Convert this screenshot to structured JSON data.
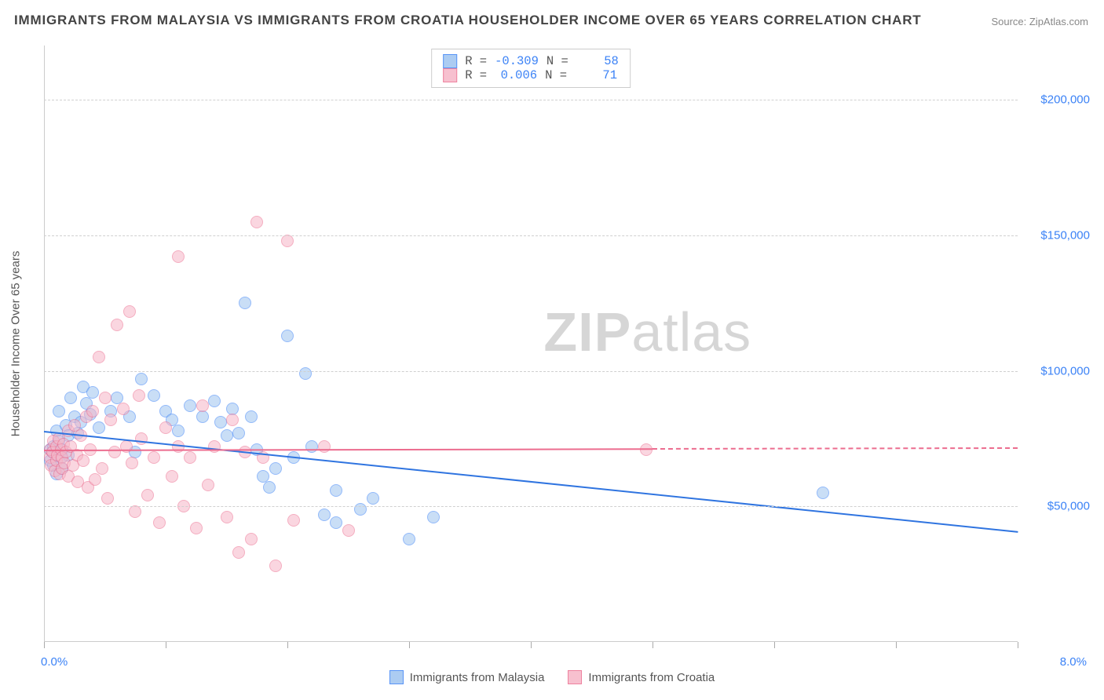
{
  "title": "IMMIGRANTS FROM MALAYSIA VS IMMIGRANTS FROM CROATIA HOUSEHOLDER INCOME OVER 65 YEARS CORRELATION CHART",
  "source_label": "Source: ZipAtlas.com",
  "watermark": {
    "bold": "ZIP",
    "rest": "atlas"
  },
  "chart": {
    "type": "scatter",
    "x_axis": {
      "min": 0.0,
      "max": 8.0,
      "min_label": "0.0%",
      "max_label": "8.0%",
      "tick_positions": [
        0,
        1,
        2,
        3,
        4,
        5,
        6,
        7,
        8
      ]
    },
    "y_axis": {
      "min": 0,
      "max": 220000,
      "title": "Householder Income Over 65 years",
      "ticks": [
        {
          "v": 50000,
          "label": "$50,000"
        },
        {
          "v": 100000,
          "label": "$100,000"
        },
        {
          "v": 150000,
          "label": "$150,000"
        },
        {
          "v": 200000,
          "label": "$200,000"
        }
      ],
      "grid_color": "#d0d0d0"
    },
    "background_color": "#ffffff",
    "marker_radius": 8,
    "marker_border_width": 1.5,
    "series": [
      {
        "id": "malaysia",
        "label": "Immigrants from Malaysia",
        "fill": "#9ec4f0",
        "fill_opacity": 0.55,
        "stroke": "#3b82f6",
        "R": "-0.309",
        "N": "58",
        "trend": {
          "x1": 0.0,
          "y1": 78000,
          "x2": 8.0,
          "y2": 41000,
          "solid_until_x": 8.0,
          "color": "#2f74e0",
          "width": 2
        },
        "points": [
          [
            0.05,
            71000
          ],
          [
            0.05,
            67000
          ],
          [
            0.07,
            70000
          ],
          [
            0.08,
            65000
          ],
          [
            0.08,
            72000
          ],
          [
            0.1,
            78000
          ],
          [
            0.1,
            62000
          ],
          [
            0.12,
            85000
          ],
          [
            0.12,
            74000
          ],
          [
            0.14,
            68000
          ],
          [
            0.15,
            71000
          ],
          [
            0.15,
            64000
          ],
          [
            0.18,
            80000
          ],
          [
            0.2,
            76000
          ],
          [
            0.2,
            69000
          ],
          [
            0.22,
            90000
          ],
          [
            0.25,
            83000
          ],
          [
            0.28,
            77000
          ],
          [
            0.3,
            81000
          ],
          [
            0.32,
            94000
          ],
          [
            0.35,
            88000
          ],
          [
            0.38,
            84000
          ],
          [
            0.4,
            92000
          ],
          [
            0.45,
            79000
          ],
          [
            0.55,
            85000
          ],
          [
            0.6,
            90000
          ],
          [
            0.7,
            83000
          ],
          [
            0.75,
            70000
          ],
          [
            0.8,
            97000
          ],
          [
            0.9,
            91000
          ],
          [
            1.0,
            85000
          ],
          [
            1.05,
            82000
          ],
          [
            1.1,
            78000
          ],
          [
            1.2,
            87000
          ],
          [
            1.3,
            83000
          ],
          [
            1.4,
            89000
          ],
          [
            1.45,
            81000
          ],
          [
            1.5,
            76000
          ],
          [
            1.55,
            86000
          ],
          [
            1.6,
            77000
          ],
          [
            1.65,
            125000
          ],
          [
            1.7,
            83000
          ],
          [
            1.75,
            71000
          ],
          [
            1.8,
            61000
          ],
          [
            1.85,
            57000
          ],
          [
            1.9,
            64000
          ],
          [
            2.0,
            113000
          ],
          [
            2.05,
            68000
          ],
          [
            2.15,
            99000
          ],
          [
            2.2,
            72000
          ],
          [
            2.3,
            47000
          ],
          [
            2.4,
            44000
          ],
          [
            2.4,
            56000
          ],
          [
            2.6,
            49000
          ],
          [
            2.7,
            53000
          ],
          [
            3.0,
            38000
          ],
          [
            3.2,
            46000
          ],
          [
            6.4,
            55000
          ]
        ]
      },
      {
        "id": "croatia",
        "label": "Immigrants from Croatia",
        "fill": "#f6b6c7",
        "fill_opacity": 0.55,
        "stroke": "#ec6d8f",
        "R": "0.006",
        "N": "71",
        "trend": {
          "x1": 0.0,
          "y1": 71000,
          "x2": 5.0,
          "y2": 71500,
          "solid_until_x": 5.0,
          "dash_to_x": 8.0,
          "color": "#ec6d8f",
          "width": 2
        },
        "points": [
          [
            0.05,
            68000
          ],
          [
            0.05,
            71000
          ],
          [
            0.06,
            65000
          ],
          [
            0.07,
            70000
          ],
          [
            0.08,
            74000
          ],
          [
            0.09,
            63000
          ],
          [
            0.1,
            72000
          ],
          [
            0.1,
            67000
          ],
          [
            0.11,
            69000
          ],
          [
            0.12,
            75000
          ],
          [
            0.13,
            62000
          ],
          [
            0.14,
            71000
          ],
          [
            0.15,
            68000
          ],
          [
            0.15,
            64000
          ],
          [
            0.16,
            73000
          ],
          [
            0.17,
            66000
          ],
          [
            0.18,
            70000
          ],
          [
            0.2,
            78000
          ],
          [
            0.2,
            61000
          ],
          [
            0.22,
            72000
          ],
          [
            0.24,
            65000
          ],
          [
            0.25,
            80000
          ],
          [
            0.27,
            69000
          ],
          [
            0.28,
            59000
          ],
          [
            0.3,
            76000
          ],
          [
            0.32,
            67000
          ],
          [
            0.35,
            83000
          ],
          [
            0.36,
            57000
          ],
          [
            0.38,
            71000
          ],
          [
            0.4,
            85000
          ],
          [
            0.42,
            60000
          ],
          [
            0.45,
            105000
          ],
          [
            0.48,
            64000
          ],
          [
            0.5,
            90000
          ],
          [
            0.52,
            53000
          ],
          [
            0.55,
            82000
          ],
          [
            0.58,
            70000
          ],
          [
            0.6,
            117000
          ],
          [
            0.65,
            86000
          ],
          [
            0.68,
            72000
          ],
          [
            0.7,
            122000
          ],
          [
            0.72,
            66000
          ],
          [
            0.75,
            48000
          ],
          [
            0.78,
            91000
          ],
          [
            0.8,
            75000
          ],
          [
            0.85,
            54000
          ],
          [
            0.9,
            68000
          ],
          [
            0.95,
            44000
          ],
          [
            1.0,
            79000
          ],
          [
            1.05,
            61000
          ],
          [
            1.1,
            72000
          ],
          [
            1.1,
            142000
          ],
          [
            1.15,
            50000
          ],
          [
            1.2,
            68000
          ],
          [
            1.25,
            42000
          ],
          [
            1.3,
            87000
          ],
          [
            1.35,
            58000
          ],
          [
            1.4,
            72000
          ],
          [
            1.5,
            46000
          ],
          [
            1.55,
            82000
          ],
          [
            1.6,
            33000
          ],
          [
            1.65,
            70000
          ],
          [
            1.7,
            38000
          ],
          [
            1.75,
            155000
          ],
          [
            1.8,
            68000
          ],
          [
            1.9,
            28000
          ],
          [
            2.0,
            148000
          ],
          [
            2.05,
            45000
          ],
          [
            2.3,
            72000
          ],
          [
            2.5,
            41000
          ],
          [
            4.95,
            71000
          ]
        ]
      }
    ]
  },
  "stats_box": {
    "r_label": "R =",
    "n_label": "N ="
  }
}
